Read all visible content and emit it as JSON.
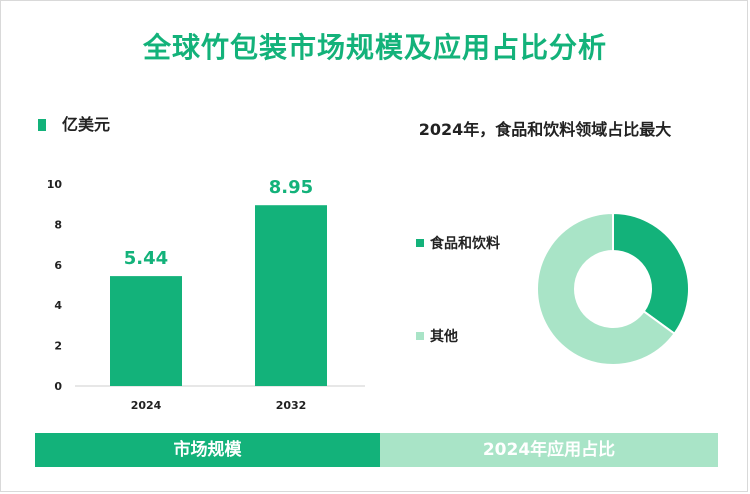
{
  "title": "全球竹包装市场规模及应用占比分析",
  "colors": {
    "primary": "#13b27a",
    "secondary": "#a9e4c7"
  },
  "chart_data": [
    {
      "type": "bar",
      "legend": "亿美元",
      "categories": [
        "2024",
        "2032"
      ],
      "values": [
        5.44,
        8.95
      ],
      "value_labels": [
        "5.44",
        "8.95"
      ],
      "yticks": [
        "0",
        "2",
        "4",
        "6",
        "8",
        "10"
      ],
      "ylim": [
        0,
        10
      ],
      "grid": false
    },
    {
      "type": "pie",
      "title": "2024年，食品和饮料领域占比最大",
      "labels": [
        "食品和饮料",
        "其他"
      ],
      "values": [
        35,
        65
      ],
      "donut": true
    }
  ],
  "footer": {
    "left": "市场规模",
    "right": "2024年应用占比"
  }
}
